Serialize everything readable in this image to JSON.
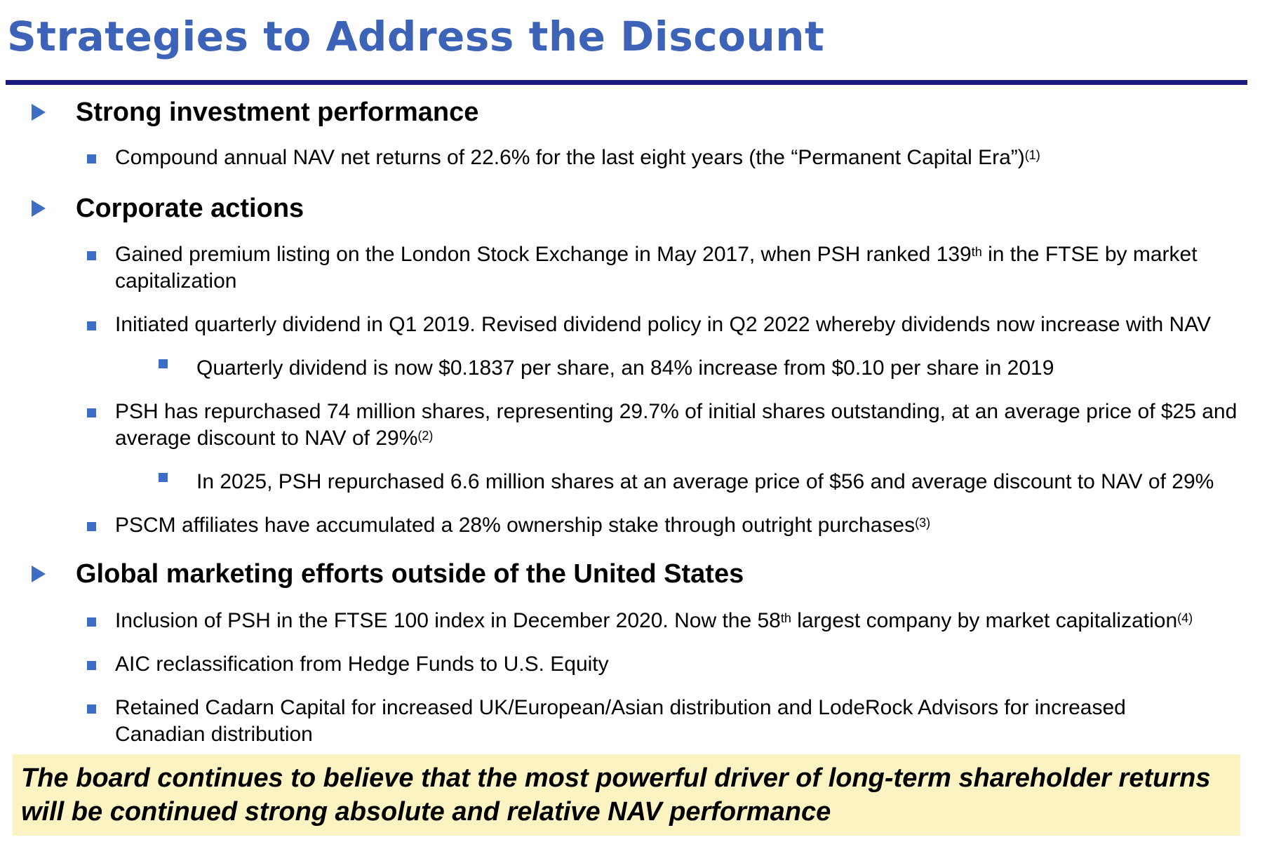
{
  "title": "Strategies to Address the Discount",
  "colors": {
    "title": "#3D63B8",
    "rule": "#1A1A7E",
    "bullet": "#3D6DC4",
    "callout_bg": "#FBF4C2"
  },
  "sections": [
    {
      "heading": "Strong investment performance",
      "items": [
        {
          "level": 1,
          "parts": [
            "Compound annual NAV net returns of 22.6% for the last eight years (the “Permanent Capital Era”)",
            "(1)"
          ]
        }
      ]
    },
    {
      "heading": "Corporate actions",
      "items": [
        {
          "level": 1,
          "parts": [
            "Gained premium listing on the London Stock Exchange in May 2017, when PSH ranked 139",
            "th",
            " in the FTSE by market capitalization"
          ]
        },
        {
          "level": 1,
          "parts": [
            "Initiated quarterly dividend in Q1 2019. Revised dividend policy in Q2 2022 whereby dividends now increase with NAV"
          ]
        },
        {
          "level": 2,
          "parts": [
            "Quarterly dividend is now $0.1837 per share, an 84% increase from $0.10 per share in 2019"
          ]
        },
        {
          "level": 1,
          "parts": [
            "PSH has repurchased 74 million shares, representing 29.7% of initial shares outstanding, at an average price of $25 and average discount to NAV of 29%",
            "(2)"
          ]
        },
        {
          "level": 2,
          "parts": [
            "In 2025, PSH repurchased 6.6 million shares at an average price of $56 and average discount to NAV of 29%"
          ]
        },
        {
          "level": 1,
          "parts": [
            "PSCM affiliates have accumulated a 28% ownership stake through outright purchases",
            "(3)"
          ]
        }
      ]
    },
    {
      "heading": "Global marketing efforts outside of the United States",
      "items": [
        {
          "level": 1,
          "parts": [
            "Inclusion of PSH in the FTSE 100 index in December 2020. Now the 58",
            "th",
            " largest company by market capitalization",
            "(4)"
          ]
        },
        {
          "level": 1,
          "parts": [
            "AIC reclassification from Hedge Funds to U.S. Equity"
          ]
        },
        {
          "level": 1,
          "parts": [
            "Retained Cadarn Capital for increased UK/European/Asian distribution and LodeRock Advisors for increased Canadian distribution"
          ]
        }
      ]
    }
  ],
  "callout": "The board continues to believe that the most powerful driver of long-term shareholder returns will be continued strong absolute and relative NAV performance"
}
